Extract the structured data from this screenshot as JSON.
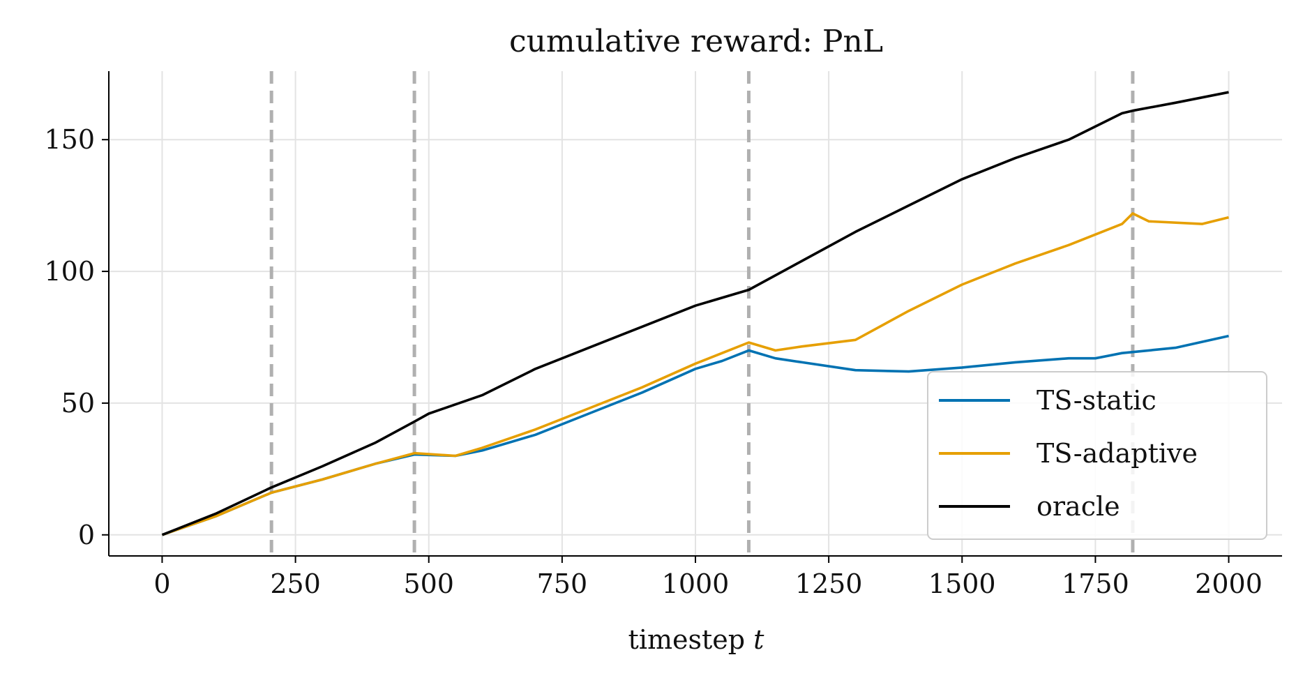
{
  "chart_data": {
    "type": "line",
    "title": "cumulative reward: PnL",
    "xlabel": "timestep",
    "xlabel_var": "t",
    "ylabel": "",
    "xlim": [
      -100,
      2100
    ],
    "ylim": [
      -8,
      176
    ],
    "xticks": [
      0,
      250,
      500,
      750,
      1000,
      1250,
      1500,
      1750,
      2000
    ],
    "yticks": [
      0,
      50,
      100,
      150
    ],
    "grid": true,
    "legend": "lower-right",
    "changepoints": [
      205,
      473,
      1100,
      1820
    ],
    "series": [
      {
        "name": "TS-static",
        "color": "#0072B2",
        "points": [
          [
            0,
            0
          ],
          [
            100,
            7
          ],
          [
            205,
            16
          ],
          [
            300,
            21
          ],
          [
            400,
            27
          ],
          [
            473,
            30.5
          ],
          [
            550,
            30
          ],
          [
            600,
            32
          ],
          [
            700,
            38
          ],
          [
            800,
            46
          ],
          [
            900,
            54
          ],
          [
            1000,
            63
          ],
          [
            1050,
            66
          ],
          [
            1100,
            70
          ],
          [
            1150,
            67
          ],
          [
            1200,
            65.5
          ],
          [
            1300,
            62.5
          ],
          [
            1400,
            62
          ],
          [
            1500,
            63.5
          ],
          [
            1600,
            65.5
          ],
          [
            1700,
            67
          ],
          [
            1750,
            67
          ],
          [
            1800,
            69
          ],
          [
            1900,
            71
          ],
          [
            2000,
            75.5
          ]
        ]
      },
      {
        "name": "TS-adaptive",
        "color": "#E69F00",
        "points": [
          [
            0,
            0
          ],
          [
            100,
            7
          ],
          [
            205,
            16
          ],
          [
            300,
            21
          ],
          [
            400,
            27
          ],
          [
            473,
            31
          ],
          [
            550,
            30
          ],
          [
            600,
            33
          ],
          [
            700,
            40
          ],
          [
            800,
            48
          ],
          [
            900,
            56
          ],
          [
            1000,
            65
          ],
          [
            1050,
            69
          ],
          [
            1100,
            73
          ],
          [
            1150,
            70
          ],
          [
            1200,
            71.5
          ],
          [
            1300,
            74
          ],
          [
            1400,
            85
          ],
          [
            1500,
            95
          ],
          [
            1600,
            103
          ],
          [
            1700,
            110
          ],
          [
            1800,
            118
          ],
          [
            1820,
            122
          ],
          [
            1850,
            119
          ],
          [
            1950,
            118
          ],
          [
            2000,
            120.5
          ]
        ]
      },
      {
        "name": "oracle",
        "color": "#000000",
        "points": [
          [
            0,
            0
          ],
          [
            100,
            8
          ],
          [
            205,
            18
          ],
          [
            300,
            26
          ],
          [
            400,
            35
          ],
          [
            473,
            43
          ],
          [
            500,
            46
          ],
          [
            600,
            53
          ],
          [
            700,
            63
          ],
          [
            800,
            71
          ],
          [
            900,
            79
          ],
          [
            1000,
            87
          ],
          [
            1100,
            93
          ],
          [
            1200,
            104
          ],
          [
            1300,
            115
          ],
          [
            1400,
            125
          ],
          [
            1500,
            135
          ],
          [
            1600,
            143
          ],
          [
            1700,
            150
          ],
          [
            1800,
            160
          ],
          [
            1820,
            161
          ],
          [
            1900,
            164
          ],
          [
            2000,
            168
          ]
        ]
      }
    ]
  }
}
